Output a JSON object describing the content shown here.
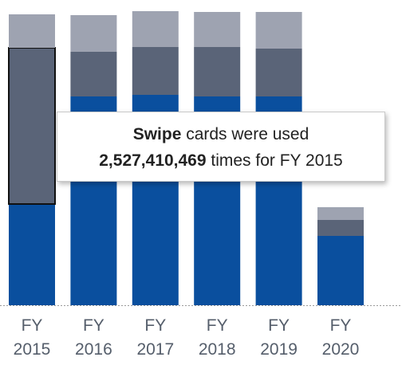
{
  "chart_data": {
    "type": "bar",
    "stacked": true,
    "categories": [
      "FY\n2015",
      "FY\n2016",
      "FY\n2017",
      "FY\n2018",
      "FY\n2019",
      "FY\n2020"
    ],
    "series": [
      {
        "values": [
          127,
          262,
          264,
          262,
          262,
          87
        ],
        "color": "#0a4f9e"
      },
      {
        "values": [
          196,
          56,
          60,
          62,
          60,
          20
        ],
        "color": "#5a6478"
      },
      {
        "values": [
          42,
          46,
          45,
          44,
          46,
          16
        ],
        "color": "#9ea3b1"
      }
    ],
    "ylim": [
      0,
      368
    ],
    "highlighted_index": 0,
    "highlighted_series": 1,
    "grid": false
  },
  "tooltip": {
    "line1_bold": "Swipe",
    "line1_rest": " cards were used",
    "line2_bold": "2,527,410,469",
    "line2_rest": " times for FY 2015"
  }
}
